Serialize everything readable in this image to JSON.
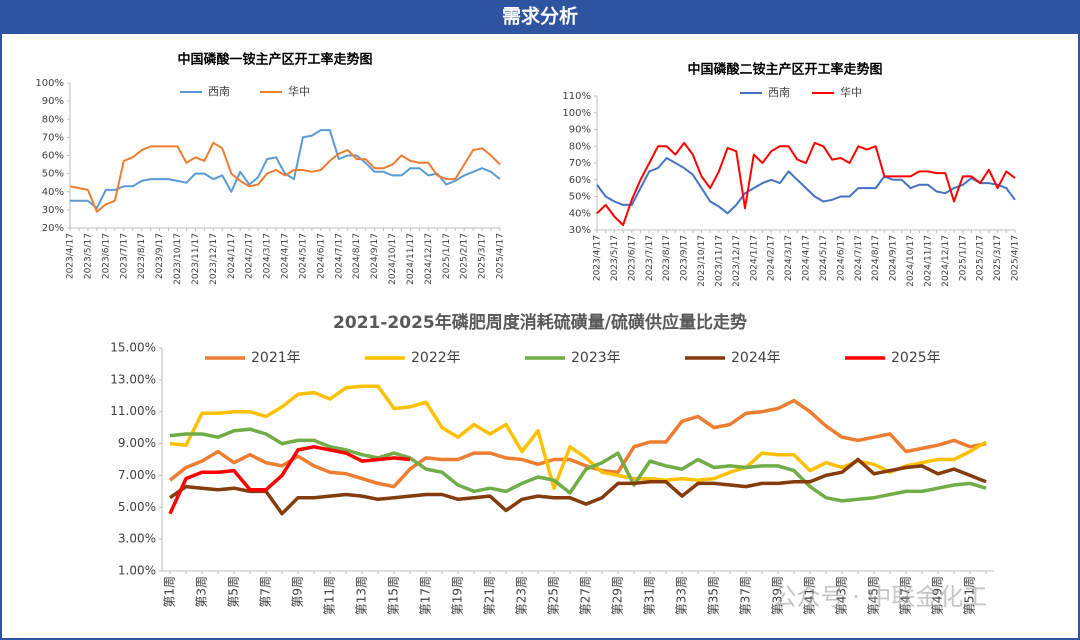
{
  "header": {
    "title": "需求分析"
  },
  "watermark": "公众号 · 中联金化工",
  "chart_data": [
    {
      "type": "line",
      "title": "中国磷酸一铵主产区开工率走势图",
      "categories": [
        "2023/4/17",
        null,
        "2023/5/17",
        null,
        "2023/6/17",
        null,
        "2023/7/17",
        null,
        "2023/8/17",
        null,
        "2023/9/17",
        null,
        "2023/10/17",
        null,
        "2023/11/17",
        null,
        "2023/12/17",
        null,
        "2024/1/17",
        null,
        "2024/2/17",
        null,
        "2024/3/17",
        null,
        "2024/4/17",
        null,
        "2024/5/17",
        null,
        "2024/6/17",
        null,
        "2024/7/17",
        null,
        "2024/8/17",
        null,
        "2024/9/17",
        null,
        "2024/10/17",
        null,
        "2024/11/17",
        null,
        "2024/12/17",
        null,
        "2025/1/17",
        null,
        "2025/2/17",
        null,
        "2025/3/17",
        null,
        "2025/4/17"
      ],
      "series": [
        {
          "name": "西南",
          "color": "#5b9bd5",
          "values": [
            35,
            35,
            35,
            31,
            41,
            41,
            43,
            43,
            46,
            47,
            47,
            47,
            46,
            45,
            50,
            50,
            47,
            49,
            40,
            51,
            44,
            48,
            58,
            59,
            50,
            47,
            70,
            71,
            74,
            74,
            58,
            60,
            60,
            56,
            51,
            51,
            49,
            49,
            53,
            53,
            49,
            50,
            44,
            46,
            49,
            51,
            53,
            51,
            47
          ]
        },
        {
          "name": "华中",
          "color": "#ed7d31",
          "values": [
            43,
            42,
            41,
            29,
            33,
            35,
            57,
            59,
            63,
            65,
            65,
            65,
            65,
            56,
            59,
            57,
            67,
            64,
            50,
            46,
            43,
            44,
            50,
            52,
            49,
            52,
            52,
            51,
            52,
            57,
            61,
            63,
            58,
            58,
            53,
            53,
            55,
            60,
            57,
            56,
            56,
            49,
            47,
            47,
            55,
            63,
            64,
            60,
            55
          ]
        }
      ],
      "ylim": [
        20,
        100
      ],
      "yticks": [
        {
          "value": 20,
          "label": "20%"
        },
        {
          "value": 30,
          "label": "30%"
        },
        {
          "value": 40,
          "label": "40%"
        },
        {
          "value": 50,
          "label": "50%"
        },
        {
          "value": 60,
          "label": "60%"
        },
        {
          "value": 70,
          "label": "70%"
        },
        {
          "value": 80,
          "label": "80%"
        },
        {
          "value": 90,
          "label": "90%"
        },
        {
          "value": 100,
          "label": "100%"
        }
      ],
      "grid": false,
      "legend": "top"
    },
    {
      "type": "line",
      "title": "中国磷酸二铵主产区开工率走势图",
      "categories": [
        "2023/4/17",
        null,
        "2023/5/17",
        null,
        "2023/6/17",
        null,
        "2023/7/17",
        null,
        "2023/8/17",
        null,
        "2023/9/17",
        null,
        "2023/10/17",
        null,
        "2023/11/17",
        null,
        "2023/12/17",
        null,
        "2024/1/17",
        null,
        "2024/2/17",
        null,
        "2024/3/17",
        null,
        "2024/4/17",
        null,
        "2024/5/17",
        null,
        "2024/6/17",
        null,
        "2024/7/17",
        null,
        "2024/8/17",
        null,
        "2024/9/17",
        null,
        "2024/10/17",
        null,
        "2024/11/17",
        null,
        "2024/12/17",
        null,
        "2025/1/17",
        null,
        "2025/2/17",
        null,
        "2025/3/17",
        null,
        "2025/4/17"
      ],
      "series": [
        {
          "name": "西南",
          "color": "#4472c4",
          "values": [
            57,
            50,
            47,
            45,
            45,
            55,
            65,
            67,
            73,
            70,
            67,
            63,
            55,
            47,
            44,
            40,
            45,
            52,
            55,
            58,
            60,
            58,
            65,
            60,
            55,
            50,
            47,
            48,
            50,
            50,
            55,
            55,
            55,
            62,
            60,
            60,
            55,
            57,
            57,
            53,
            52,
            55,
            57,
            61,
            58,
            58,
            57,
            55,
            48
          ]
        },
        {
          "name": "华中",
          "color": "#ff0000",
          "values": [
            40,
            45,
            38,
            33,
            48,
            60,
            70,
            80,
            80,
            75,
            82,
            75,
            62,
            55,
            65,
            79,
            77,
            43,
            75,
            70,
            77,
            80,
            80,
            72,
            70,
            82,
            80,
            72,
            73,
            70,
            80,
            78,
            80,
            62,
            62,
            62,
            62,
            65,
            65,
            64,
            64,
            47,
            62,
            62,
            58,
            66,
            55,
            65,
            61
          ]
        }
      ],
      "ylim": [
        30,
        110
      ],
      "yticks": [
        {
          "value": 30,
          "label": "30%"
        },
        {
          "value": 40,
          "label": "40%"
        },
        {
          "value": 50,
          "label": "50%"
        },
        {
          "value": 60,
          "label": "60%"
        },
        {
          "value": 70,
          "label": "70%"
        },
        {
          "value": 80,
          "label": "80%"
        },
        {
          "value": 90,
          "label": "90%"
        },
        {
          "value": 100,
          "label": "100%"
        },
        {
          "value": 110,
          "label": "110%"
        }
      ],
      "grid": false,
      "legend": "top"
    },
    {
      "type": "line",
      "title": "2021-2025年磷肥周度消耗硫磺量/硫磺供应量比走势",
      "categories": [
        "第1周",
        null,
        "第3周",
        null,
        "第5周",
        null,
        "第7周",
        null,
        "第9周",
        null,
        "第11周",
        null,
        "第13周",
        null,
        "第15周",
        null,
        "第17周",
        null,
        "第19周",
        null,
        "第21周",
        null,
        "第23周",
        null,
        "第25周",
        null,
        "第27周",
        null,
        "第29周",
        null,
        "第31周",
        null,
        "第33周",
        null,
        "第35周",
        null,
        "第37周",
        null,
        "第39周",
        null,
        "第41周",
        null,
        "第43周",
        null,
        "第45周",
        null,
        "第47周",
        null,
        "第49周",
        null,
        "第51周",
        null
      ],
      "series": [
        {
          "name": "2021年",
          "color": "#ed7d31",
          "values": [
            6.7,
            7.5,
            7.9,
            8.5,
            7.8,
            8.3,
            7.8,
            7.6,
            8.2,
            7.6,
            7.2,
            7.1,
            6.8,
            6.5,
            6.3,
            7.4,
            8.1,
            8.0,
            8.0,
            8.4,
            8.4,
            8.1,
            8.0,
            7.7,
            8.0,
            8.0,
            7.6,
            7.3,
            7.2,
            8.8,
            9.1,
            9.1,
            10.4,
            10.7,
            10.0,
            10.2,
            10.9,
            11.0,
            11.2,
            11.7,
            11.0,
            10.1,
            9.4,
            9.2,
            9.4,
            9.6,
            8.5,
            8.7,
            8.9,
            9.2,
            8.8,
            9.0
          ]
        },
        {
          "name": "2022年",
          "color": "#ffc000",
          "values": [
            9.0,
            8.9,
            10.9,
            10.9,
            11.0,
            11.0,
            10.7,
            11.3,
            12.1,
            12.2,
            11.8,
            12.5,
            12.6,
            12.6,
            11.2,
            11.3,
            11.6,
            10.0,
            9.4,
            10.2,
            9.6,
            10.2,
            8.5,
            9.8,
            6.2,
            8.8,
            8.1,
            7.2,
            7.0,
            6.8,
            6.8,
            6.7,
            6.8,
            6.7,
            6.8,
            7.2,
            7.5,
            8.4,
            8.3,
            8.3,
            7.3,
            7.8,
            7.5,
            7.9,
            7.7,
            7.2,
            7.6,
            7.8,
            8.0,
            8.0,
            8.5,
            9.1
          ]
        },
        {
          "name": "2023年",
          "color": "#70ad47",
          "values": [
            9.5,
            9.6,
            9.6,
            9.4,
            9.8,
            9.9,
            9.6,
            9.0,
            9.2,
            9.2,
            8.8,
            8.6,
            8.3,
            8.1,
            8.4,
            8.1,
            7.4,
            7.2,
            6.4,
            6.0,
            6.2,
            6.0,
            6.5,
            6.9,
            6.7,
            5.9,
            7.4,
            7.8,
            8.4,
            6.4,
            7.9,
            7.6,
            7.4,
            8.0,
            7.5,
            7.6,
            7.5,
            7.6,
            7.6,
            7.3,
            6.3,
            5.6,
            5.4,
            5.5,
            5.6,
            5.8,
            6.0,
            6.0,
            6.2,
            6.4,
            6.5,
            6.2
          ]
        },
        {
          "name": "2024年",
          "color": "#843c0c",
          "values": [
            5.6,
            6.3,
            6.2,
            6.1,
            6.2,
            6.0,
            6.0,
            4.6,
            5.6,
            5.6,
            5.7,
            5.8,
            5.7,
            5.5,
            5.6,
            5.7,
            5.8,
            5.8,
            5.5,
            5.6,
            5.7,
            4.8,
            5.5,
            5.7,
            5.6,
            5.6,
            5.2,
            5.6,
            6.5,
            6.5,
            6.6,
            6.6,
            5.7,
            6.5,
            6.5,
            6.4,
            6.3,
            6.5,
            6.5,
            6.6,
            6.6,
            7.0,
            7.2,
            8.0,
            7.1,
            7.3,
            7.5,
            7.6,
            7.1,
            7.4,
            7.0,
            6.6
          ]
        },
        {
          "name": "2025年",
          "color": "#ff0000",
          "values": [
            4.6,
            6.8,
            7.2,
            7.2,
            7.3,
            6.1,
            6.1,
            7.0,
            8.6,
            8.8,
            8.6,
            8.4,
            7.9,
            8.0,
            8.1,
            8.0,
            null,
            null,
            null,
            null,
            null,
            null,
            null,
            null,
            null,
            null,
            null,
            null,
            null,
            null,
            null,
            null,
            null,
            null,
            null,
            null,
            null,
            null,
            null,
            null,
            null,
            null,
            null,
            null,
            null,
            null,
            null,
            null,
            null,
            null,
            null,
            null
          ]
        }
      ],
      "ylim": [
        1,
        15
      ],
      "yticks": [
        {
          "value": 1,
          "label": "1.00%"
        },
        {
          "value": 3,
          "label": "3.00%"
        },
        {
          "value": 5,
          "label": "5.00%"
        },
        {
          "value": 7,
          "label": "7.00%"
        },
        {
          "value": 9,
          "label": "9.00%"
        },
        {
          "value": 11,
          "label": "11.00%"
        },
        {
          "value": 13,
          "label": "13.00%"
        },
        {
          "value": 15,
          "label": "15.00%"
        }
      ],
      "grid": false,
      "legend": "top"
    }
  ]
}
